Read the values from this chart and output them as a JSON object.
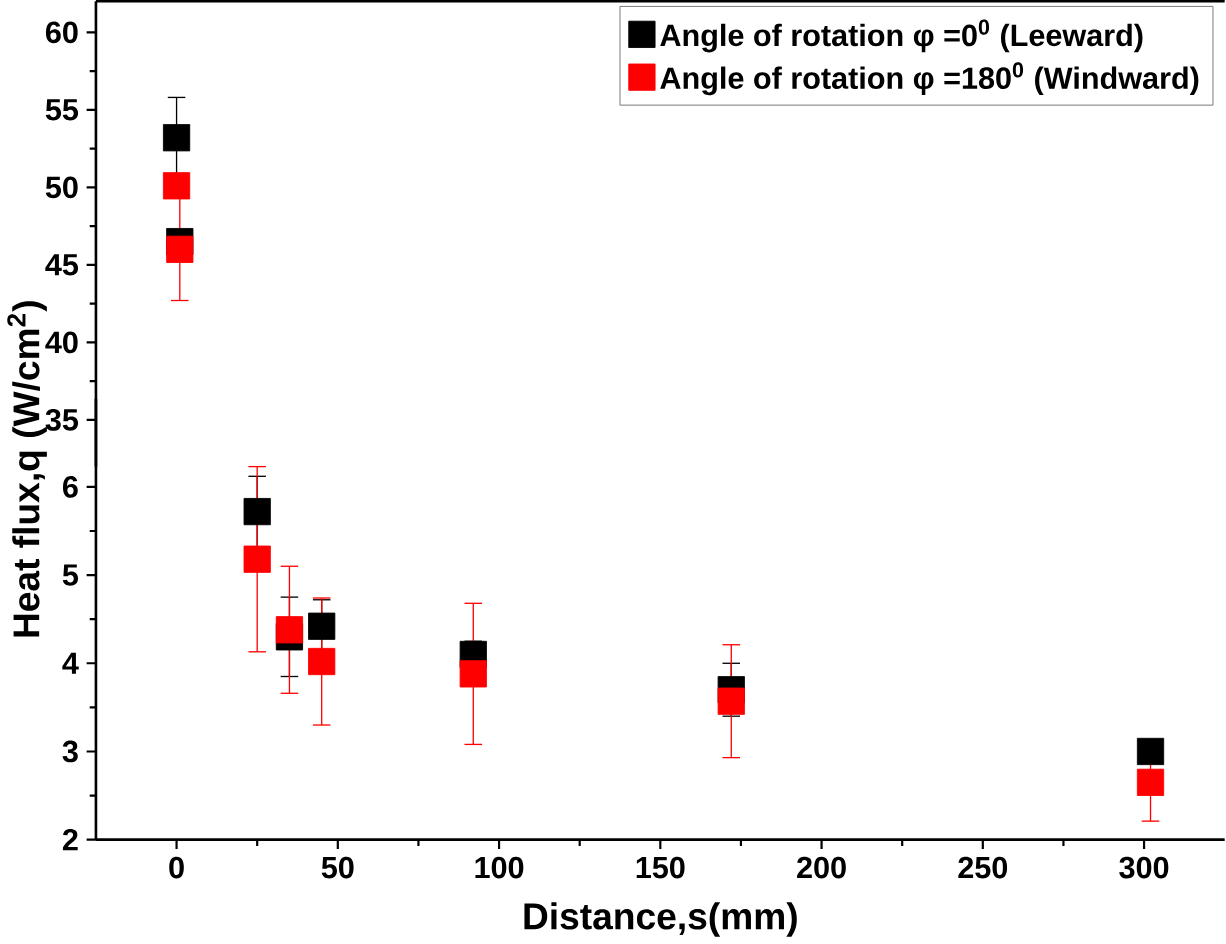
{
  "chart_data": [
    {
      "type": "scatter",
      "ylim": [
        32,
        62
      ],
      "yticks": [
        35,
        40,
        45,
        50,
        55,
        60
      ],
      "xlim": [
        -25,
        325
      ],
      "tick_labels": "y",
      "marker": "square",
      "grid": false,
      "legend": "top right",
      "series": [
        {
          "name": "Angle of rotation φ =0$^{0}$ (Leeward)",
          "color": "#000000",
          "x": [
            0,
            1
          ],
          "values": [
            53.2,
            46.5
          ],
          "errors": [
            2.6,
            null
          ]
        },
        {
          "name": "Angle of rotation φ =180$^{0}$ (Windward)",
          "color": "#ff0000",
          "x": [
            0,
            1
          ],
          "values": [
            50.1,
            46.0
          ],
          "errors": [
            null,
            3.3
          ]
        }
      ]
    },
    {
      "type": "scatter",
      "ylim": [
        2,
        7
      ],
      "yticks": [
        2,
        3,
        4,
        5,
        6
      ],
      "xlim": [
        -25,
        325
      ],
      "xticks": [
        0,
        50,
        100,
        150,
        200,
        250,
        300
      ],
      "marker": "square",
      "grid": false,
      "xlabel": "Distance,s(mm)",
      "ylabel": "Heat flux,q (W/cm$^{2}$)",
      "series": [
        {
          "color": "#000000",
          "x": [
            25,
            35,
            45,
            92,
            172,
            302
          ],
          "values": [
            5.72,
            4.3,
            4.42,
            4.1,
            3.7,
            3.0
          ],
          "errors": [
            0.4,
            0.45,
            0.3,
            0.15,
            0.3,
            0.1
          ]
        },
        {
          "color": "#ff0000",
          "x": [
            25,
            35,
            45,
            92,
            172,
            302
          ],
          "values": [
            5.18,
            4.38,
            4.02,
            3.88,
            3.57,
            2.65
          ],
          "errors": [
            1.05,
            0.72,
            0.72,
            0.8,
            0.64,
            0.44
          ]
        }
      ]
    }
  ]
}
